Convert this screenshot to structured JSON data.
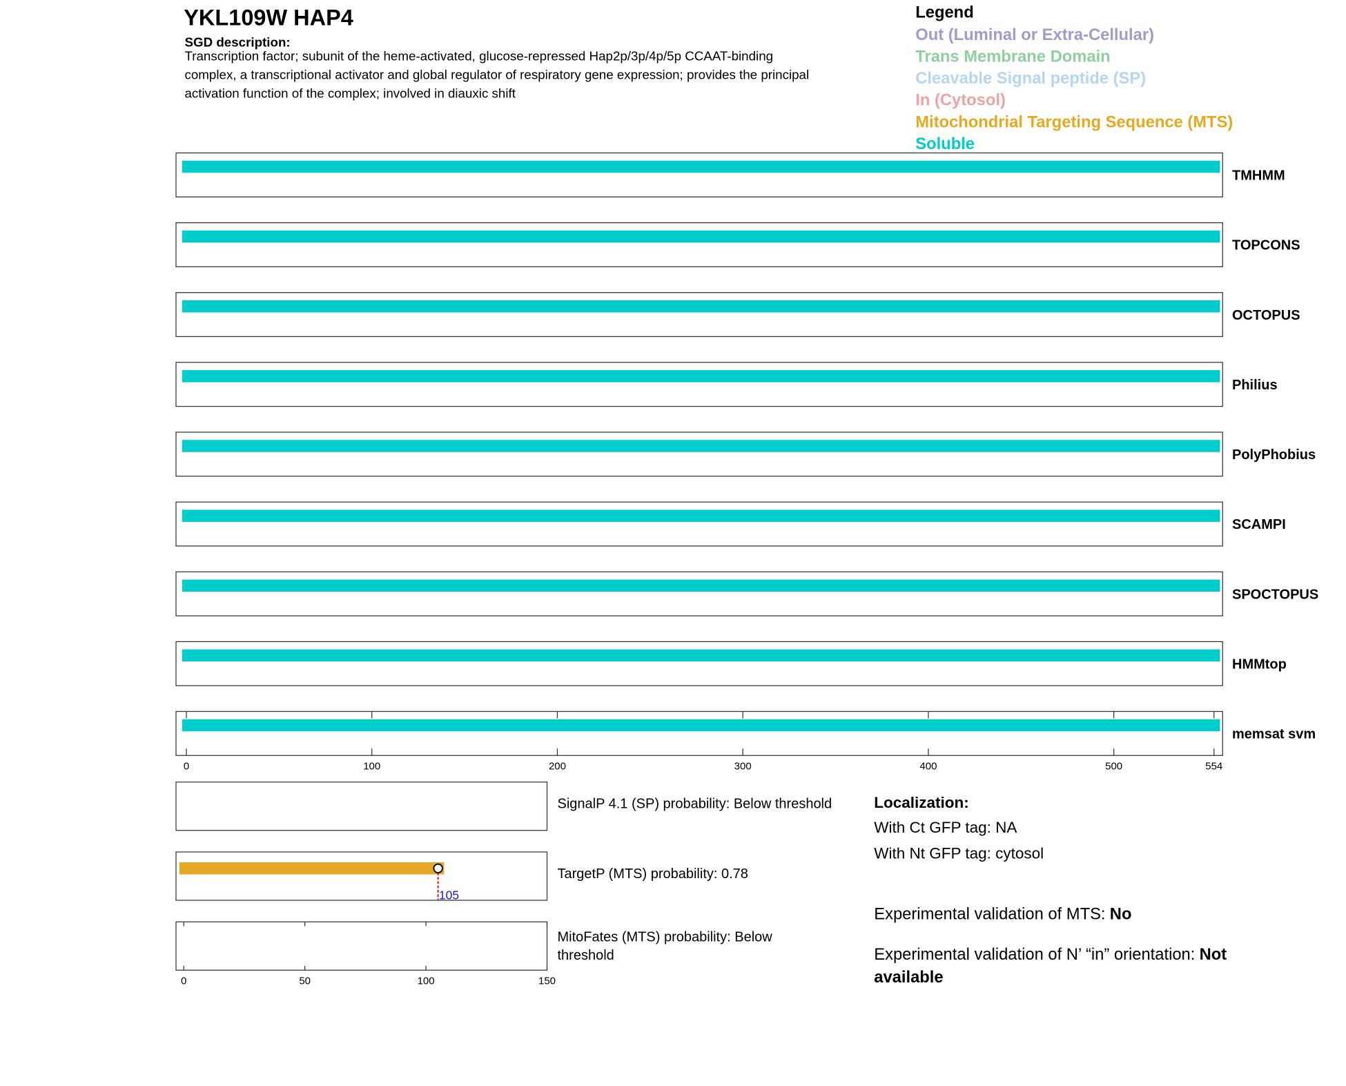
{
  "header": {
    "title": "YKL109W  HAP4",
    "description_label": "SGD description:",
    "description": [
      "Transcription factor; subunit of the heme-activated, glucose-repressed Hap2p/3p/4p/5p CCAAT-binding",
      "complex, a transcriptional activator and global regulator of respiratory gene expression; provides the principal",
      "activation function of the complex; involved in diauxic shift"
    ]
  },
  "legend": {
    "title": "Legend",
    "items": [
      {
        "label": "Out (Luminal or Extra-Cellular)",
        "color": "#9d9dcc"
      },
      {
        "label": "Trans Membrane Domain",
        "color": "#8fcf9f"
      },
      {
        "label": "Cleavable Signal peptide (SP)",
        "color": "#b5d5f2"
      },
      {
        "label": "In (Cytosol)",
        "color": "#eda3a3"
      },
      {
        "label": "Mitochondrial Targeting Sequence (MTS)",
        "color": "#e6a822"
      },
      {
        "label": "Soluble",
        "color": "#00cccc"
      }
    ]
  },
  "chart_data": [
    {
      "type": "topology",
      "xlim": [
        0,
        554
      ],
      "xticks": [
        0,
        100,
        200,
        300,
        400,
        500,
        554
      ],
      "series": [
        {
          "name": "TMHMM",
          "color": "#00cccc",
          "segments": [
            [
              0,
              554
            ]
          ]
        },
        {
          "name": "TOPCONS",
          "color": "#00cccc",
          "segments": [
            [
              0,
              554
            ]
          ]
        },
        {
          "name": "OCTOPUS",
          "color": "#00cccc",
          "segments": [
            [
              0,
              554
            ]
          ]
        },
        {
          "name": "Philius",
          "color": "#00cccc",
          "segments": [
            [
              0,
              554
            ]
          ]
        },
        {
          "name": "PolyPhobius",
          "color": "#00cccc",
          "segments": [
            [
              0,
              554
            ]
          ]
        },
        {
          "name": "SCAMPI",
          "color": "#00cccc",
          "segments": [
            [
              0,
              554
            ]
          ]
        },
        {
          "name": "SPOCTOPUS",
          "color": "#00cccc",
          "segments": [
            [
              0,
              554
            ]
          ]
        },
        {
          "name": "HMMtop",
          "color": "#00cccc",
          "segments": [
            [
              0,
              554
            ]
          ]
        },
        {
          "name": "memsat svm",
          "color": "#00cccc",
          "segments": [
            [
              0,
              554
            ]
          ]
        }
      ]
    },
    {
      "type": "bar",
      "xlim": [
        0,
        150
      ],
      "xticks": [
        0,
        50,
        100,
        150
      ],
      "series": [
        {
          "name": [
            "SignalP 4.1 (SP) probability: Below threshold"
          ],
          "color": "#e6a822",
          "values": [
            null
          ],
          "value_labels": [
            null
          ]
        },
        {
          "name": [
            "TargetP (MTS) probability: 0.78"
          ],
          "color": "#e6a822",
          "values": [
            105
          ],
          "value_labels": [
            "105"
          ]
        },
        {
          "name": [
            "MitoFates (MTS) probability: Below",
            "threshold"
          ],
          "color": "#e6a822",
          "values": [
            null
          ],
          "value_labels": [
            null
          ]
        }
      ]
    }
  ],
  "localization": {
    "title": "Localization:",
    "lines": [
      "With Ct GFP tag: NA",
      "With Nt GFP tag: cytosol"
    ],
    "mts_validation": {
      "text": "Experimental validation of MTS:",
      "value": "No"
    },
    "orientation_validation": {
      "text": "Experimental validation of N’ “in” orientation:",
      "value": [
        "Not",
        "available"
      ]
    }
  }
}
